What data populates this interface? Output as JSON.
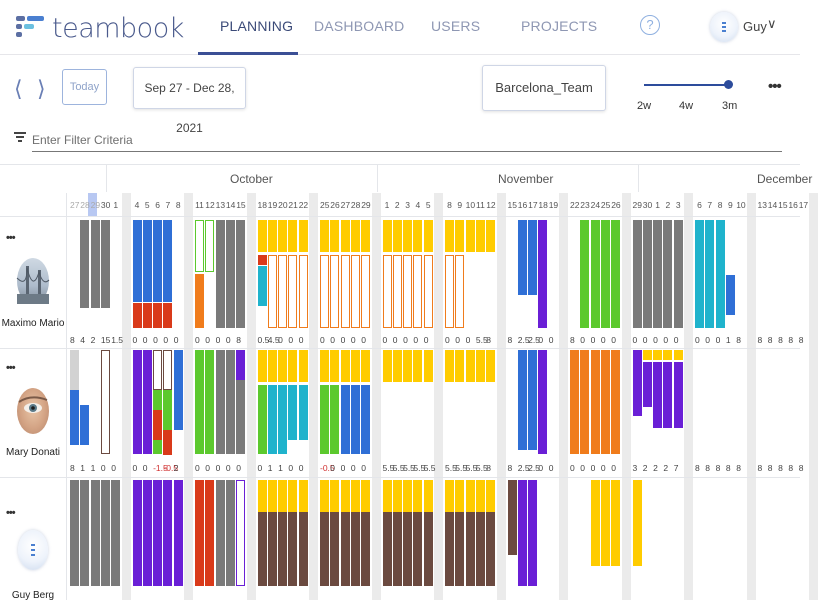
{
  "app": {
    "logo_text": "teambook"
  },
  "nav": {
    "tabs": [
      {
        "label": "PLANNING",
        "active": true
      },
      {
        "label": "DASHBOARD",
        "active": false
      },
      {
        "label": "USERS",
        "active": false
      },
      {
        "label": "PROJECTS",
        "active": false
      }
    ],
    "help_label": "?",
    "user": {
      "name": "Guy",
      "caret": "∨"
    }
  },
  "toolbar": {
    "prev": "⟨",
    "next": "⟩",
    "today_label": "Today",
    "date_range": "Sep 27 - Dec 28, 2021",
    "team": "Barcelona_Team",
    "zoom": {
      "options": [
        "2w",
        "4w",
        "3m"
      ],
      "selected": "3m"
    },
    "more": "•••"
  },
  "filter": {
    "placeholder": "Enter Filter Criteria"
  },
  "calendar": {
    "months": [
      "October",
      "November",
      "December"
    ],
    "days": [
      "27",
      "28",
      "29",
      "30",
      "1",
      "4",
      "5",
      "6",
      "7",
      "8",
      "11",
      "12",
      "13",
      "14",
      "15",
      "18",
      "19",
      "20",
      "21",
      "22",
      "25",
      "26",
      "27",
      "28",
      "29",
      "1",
      "2",
      "3",
      "4",
      "5",
      "8",
      "9",
      "10",
      "11",
      "12",
      "15",
      "16",
      "17",
      "18",
      "19",
      "22",
      "23",
      "24",
      "25",
      "26",
      "29",
      "30",
      "1",
      "2",
      "3",
      "6",
      "7",
      "8",
      "9",
      "10",
      "13",
      "14",
      "15",
      "16",
      "17"
    ],
    "today": "29",
    "people": [
      {
        "name": "Maximo Mario",
        "menu": "•••",
        "capacity": [
          "8",
          "4",
          "2",
          "15",
          "1.5",
          "0",
          "0",
          "0",
          "0",
          "0",
          "0",
          "0",
          "0",
          "0",
          "8",
          "0.5",
          "4.5",
          "0",
          "0",
          "0",
          "0",
          "0",
          "0",
          "0",
          "0",
          "0",
          "0",
          "0",
          "0",
          "0",
          "0",
          "0",
          "0",
          "5.5",
          "8",
          "8",
          "2.5",
          "2.5",
          "0",
          "0",
          "8",
          "0",
          "0",
          "0",
          "0",
          "0",
          "0",
          "0",
          "0",
          "0",
          "0",
          "0",
          "0",
          "1",
          "8",
          "8",
          "8",
          "8",
          "8",
          "8"
        ]
      },
      {
        "name": "Mary Donati",
        "menu": "•••",
        "capacity": [
          "8",
          "1",
          "1",
          "0",
          "0",
          "0",
          "0",
          "-1.5",
          "-0.5",
          "2",
          "0",
          "0",
          "0",
          "0",
          "0",
          "0",
          "1",
          "1",
          "0",
          "0",
          "-0.5",
          "0",
          "0",
          "0",
          "0",
          "5.5",
          "5.5",
          "5.5",
          "5.5",
          "5.5",
          "5.5",
          "5.5",
          "5.5",
          "5.5",
          "8",
          "8",
          "2.5",
          "2.5",
          "0",
          "0",
          "0",
          "0",
          "0",
          "0",
          "0",
          "3",
          "2",
          "2",
          "2",
          "7",
          "8",
          "8",
          "8",
          "8",
          "8",
          "8",
          "8",
          "8",
          "8",
          "8"
        ]
      },
      {
        "name": "Guy Berg",
        "menu": "•••"
      }
    ]
  },
  "colors": {
    "gray": "#7a7a7a",
    "lightgray": "#d2d2d2",
    "blue": "#2f6fd6",
    "teal": "#1fb3cc",
    "red": "#d93a1a",
    "orange": "#f07c1c",
    "green": "#5cc92e",
    "yellow": "#ffcc00",
    "purple": "#6a1fd6",
    "brown": "#6b4a40",
    "nav_active": "#3b4a78",
    "accent": "#2d4c9c"
  }
}
